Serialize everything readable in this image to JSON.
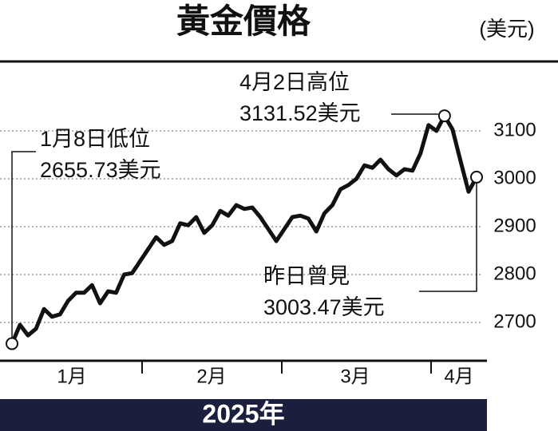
{
  "chart_data": {
    "type": "line",
    "title": "黃金價格",
    "unit": "(美元)",
    "year_label": "2025年",
    "months": [
      "1月",
      "2月",
      "3月",
      "4月"
    ],
    "color": "#111111",
    "grid": true,
    "ylim": [
      2620,
      3240
    ],
    "yticks": [
      2700,
      2800,
      2900,
      3000,
      3100
    ],
    "values": [
      2655.73,
      2695,
      2673,
      2687,
      2728,
      2712,
      2717,
      2745,
      2762,
      2762,
      2778,
      2740,
      2765,
      2762,
      2800,
      2803,
      2828,
      2853,
      2878,
      2862,
      2870,
      2907,
      2903,
      2920,
      2887,
      2903,
      2933,
      2923,
      2945,
      2937,
      2940,
      2920,
      2895,
      2870,
      2895,
      2920,
      2923,
      2917,
      2890,
      2928,
      2945,
      2978,
      2987,
      3000,
      3028,
      3023,
      3040,
      3020,
      3007,
      3020,
      3017,
      3053,
      3112,
      3100,
      3131.52,
      3103,
      3037,
      2973,
      3003.47
    ],
    "annotations": [
      {
        "lines": [
          "1月8日低位",
          "2655.73美元"
        ],
        "index": 0
      },
      {
        "lines": [
          "4月2日高位",
          "3131.52美元"
        ],
        "index": 54
      },
      {
        "lines": [
          "昨日曾見",
          "3003.47美元"
        ],
        "index": 58
      }
    ]
  }
}
